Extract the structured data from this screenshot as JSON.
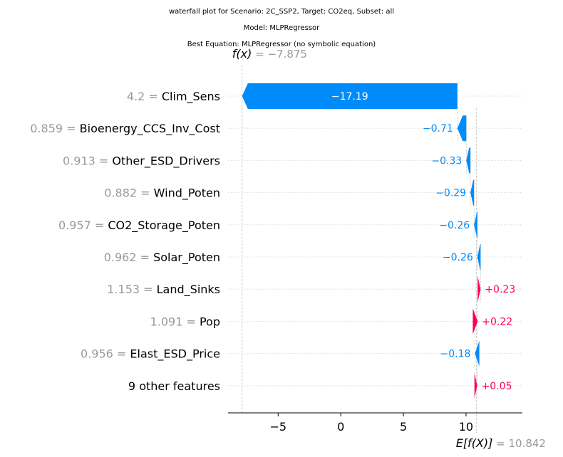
{
  "titles": [
    "waterfall plot for Scenario: 2C_SSP2, Target: CO2eq, Subset: all",
    "Model: MLPRegressor",
    "Best Equation: MLPRegressor (no symbolic equation)"
  ],
  "colors": {
    "negative": "#008bfb",
    "positive": "#ff0051",
    "feature_value": "#999999",
    "grid": "#cccccc"
  },
  "chart_data": {
    "type": "waterfall",
    "title": "waterfall plot for Scenario: 2C_SSP2, Target: CO2eq, Subset: all",
    "fx_label": "f(x)",
    "fx_value": "−7.875",
    "fx": -7.875,
    "base_label": "E[f(X)]",
    "base_value": "10.842",
    "base": 10.842,
    "xlim": [
      -9,
      14.5
    ],
    "xticks": [
      -5,
      0,
      5,
      10
    ],
    "xtick_labels": [
      "−5",
      "0",
      "5",
      "10"
    ],
    "features": [
      {
        "value": "4.2",
        "name": "Clim_Sens",
        "shap": -17.19,
        "label": "−17.19"
      },
      {
        "value": "0.859",
        "name": "Bioenergy_CCS_Inv_Cost",
        "shap": -0.71,
        "label": "−0.71"
      },
      {
        "value": "0.913",
        "name": "Other_ESD_Drivers",
        "shap": -0.33,
        "label": "−0.33"
      },
      {
        "value": "0.882",
        "name": "Wind_Poten",
        "shap": -0.29,
        "label": "−0.29"
      },
      {
        "value": "0.957",
        "name": "CO2_Storage_Poten",
        "shap": -0.26,
        "label": "−0.26"
      },
      {
        "value": "0.962",
        "name": "Solar_Poten",
        "shap": -0.26,
        "label": "−0.26"
      },
      {
        "value": "1.153",
        "name": "Land_Sinks",
        "shap": 0.23,
        "label": "+0.23"
      },
      {
        "value": "1.091",
        "name": "Pop",
        "shap": 0.22,
        "label": "+0.22"
      },
      {
        "value": "0.956",
        "name": "Elast_ESD_Price",
        "shap": -0.18,
        "label": "−0.18"
      },
      {
        "value": "",
        "name": "9 other features",
        "shap": 0.05,
        "label": "+0.05"
      }
    ]
  }
}
